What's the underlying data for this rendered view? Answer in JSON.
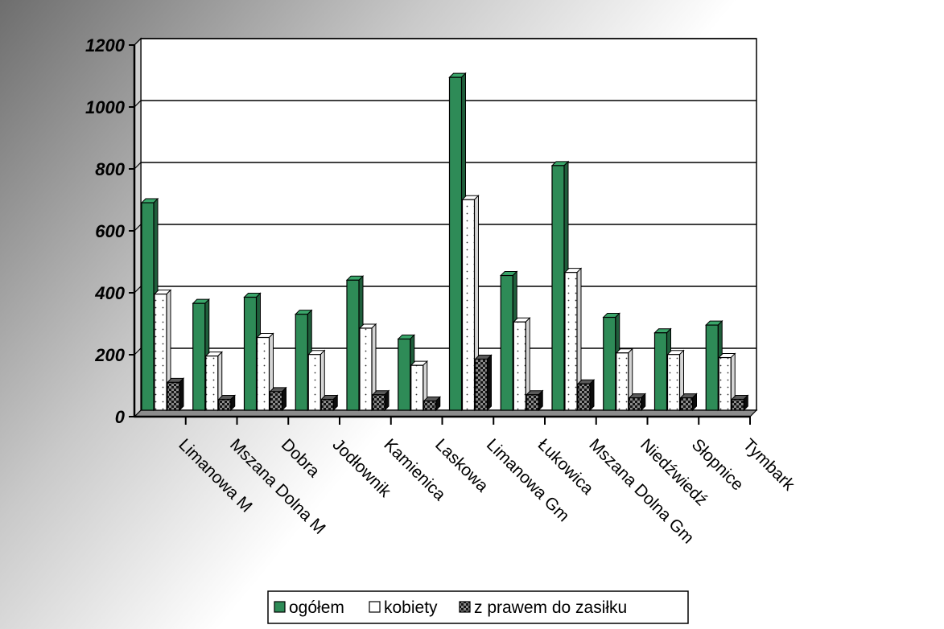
{
  "chart_data": {
    "type": "bar",
    "title": "",
    "xlabel": "",
    "ylabel": "",
    "ylim": [
      0,
      1200
    ],
    "yticks": [
      "0",
      "200",
      "400",
      "600",
      "800",
      "1000",
      "1200"
    ],
    "grid": true,
    "legend_position": "bottom",
    "categories": [
      "Limanowa M",
      "Mszana Dolna M",
      "Dobra",
      "Jodłownik",
      "Kamienica",
      "Laskowa",
      "Limanowa Gm",
      "Łukowica",
      "Mszana Dolna Gm",
      "Niedźwiedź",
      "Słopnice",
      "Tymbark"
    ],
    "series": [
      {
        "name": "ogółem",
        "values": [
          670,
          345,
          365,
          310,
          420,
          230,
          1075,
          435,
          790,
          300,
          250,
          275
        ],
        "color": "#2e8b57"
      },
      {
        "name": "kobiety",
        "values": [
          375,
          175,
          235,
          180,
          265,
          145,
          680,
          285,
          445,
          185,
          180,
          170
        ],
        "color": "#ffffff"
      },
      {
        "name": "z  prawem do zasiłku",
        "values": [
          90,
          35,
          60,
          35,
          50,
          30,
          165,
          50,
          85,
          40,
          40,
          35
        ],
        "color": "#1a1a1a"
      }
    ]
  }
}
